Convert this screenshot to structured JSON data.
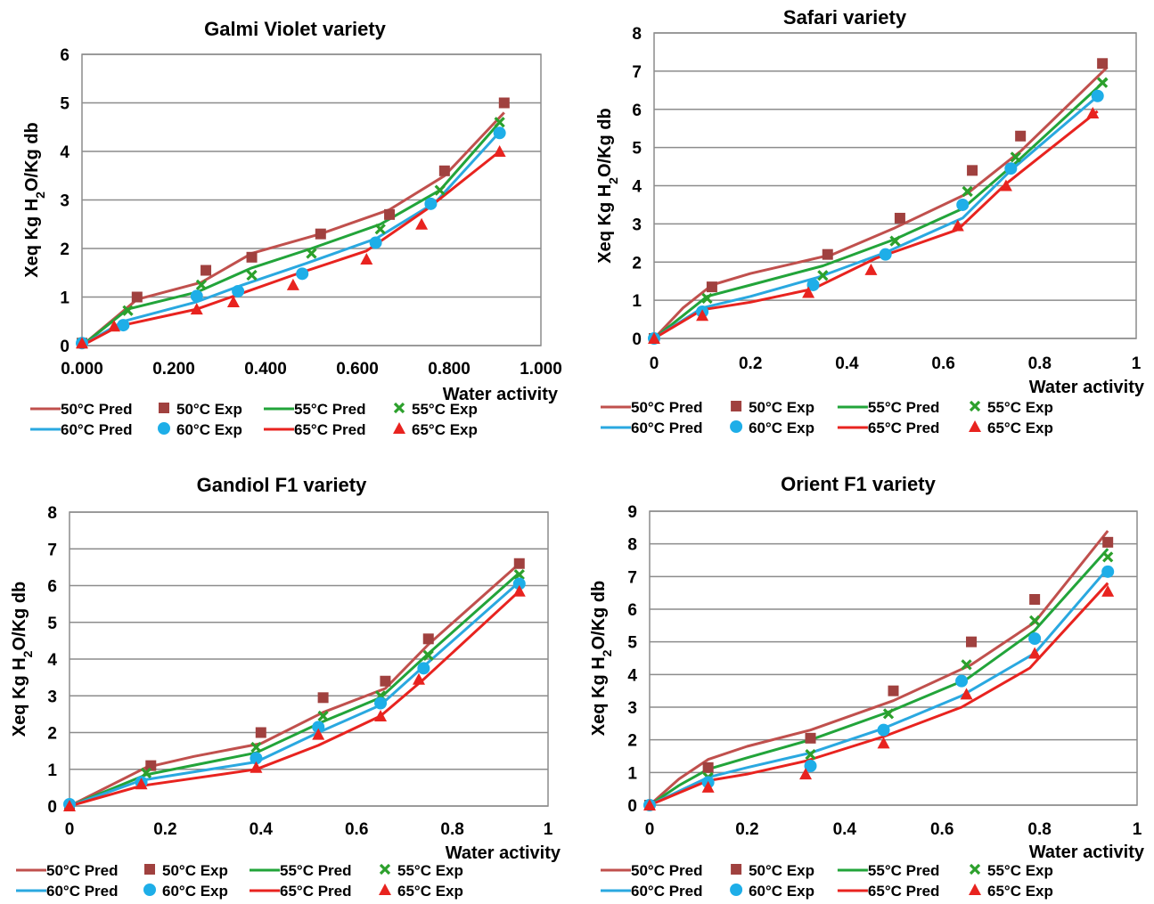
{
  "chart_data": [
    {
      "type": "line",
      "title": "Galmi Violet variety",
      "xlabel": "Water activity",
      "ylabel": "Xeq Kg H2O/Kg db",
      "xlim": [
        0,
        1
      ],
      "ylim": [
        0,
        6
      ],
      "xticks": [
        0,
        0.2,
        0.4,
        0.6,
        0.8,
        1.0
      ],
      "xtick_labels": [
        "0.000",
        "0.200",
        "0.400",
        "0.600",
        "0.800",
        "1.000"
      ],
      "yticks": [
        0,
        1,
        2,
        3,
        4,
        5,
        6
      ],
      "ytick_labels": [
        "0",
        "1",
        "2",
        "3",
        "4",
        "5",
        "6"
      ],
      "grid": "horizontal",
      "legend_position": "bottom",
      "series": [
        {
          "name": "50°C Pred",
          "kind": "line",
          "color": "#c0504d",
          "x": [
            0,
            0.12,
            0.26,
            0.37,
            0.52,
            0.67,
            0.79,
            0.92
          ],
          "y": [
            0,
            0.95,
            1.3,
            1.9,
            2.3,
            2.8,
            3.5,
            4.8
          ]
        },
        {
          "name": "50°C Exp",
          "kind": "marker",
          "marker": "square",
          "color": "#a0413f",
          "x": [
            0,
            0.12,
            0.27,
            0.37,
            0.52,
            0.67,
            0.79,
            0.92
          ],
          "y": [
            0.05,
            1.0,
            1.55,
            1.82,
            2.3,
            2.7,
            3.6,
            5.0
          ]
        },
        {
          "name": "55°C Pred",
          "kind": "line",
          "color": "#22a43a",
          "x": [
            0,
            0.1,
            0.25,
            0.37,
            0.5,
            0.65,
            0.78,
            0.91
          ],
          "y": [
            0,
            0.75,
            1.1,
            1.6,
            2.0,
            2.5,
            3.2,
            4.6
          ]
        },
        {
          "name": "55°C Exp",
          "kind": "marker",
          "marker": "x",
          "color": "#2ca02c",
          "x": [
            0,
            0.1,
            0.26,
            0.37,
            0.5,
            0.65,
            0.78,
            0.91
          ],
          "y": [
            0.05,
            0.72,
            1.25,
            1.45,
            1.9,
            2.4,
            3.2,
            4.6
          ]
        },
        {
          "name": "60°C Pred",
          "kind": "line",
          "color": "#2aa8e0",
          "x": [
            0,
            0.09,
            0.25,
            0.35,
            0.49,
            0.64,
            0.77,
            0.91
          ],
          "y": [
            0,
            0.5,
            0.9,
            1.25,
            1.7,
            2.2,
            2.95,
            4.4
          ]
        },
        {
          "name": "60°C Exp",
          "kind": "marker",
          "marker": "circle",
          "color": "#1eaee8",
          "x": [
            0,
            0.09,
            0.25,
            0.34,
            0.48,
            0.64,
            0.76,
            0.91
          ],
          "y": [
            0.05,
            0.42,
            1.02,
            1.12,
            1.48,
            2.12,
            2.92,
            4.38
          ]
        },
        {
          "name": "65°C Pred",
          "kind": "line",
          "color": "#e8231f",
          "x": [
            0,
            0.08,
            0.25,
            0.34,
            0.46,
            0.62,
            0.75,
            0.91
          ],
          "y": [
            0,
            0.4,
            0.75,
            1.05,
            1.45,
            1.95,
            2.8,
            4.0
          ]
        },
        {
          "name": "65°C Exp",
          "kind": "marker",
          "marker": "triangle",
          "color": "#e8231f",
          "x": [
            0,
            0.07,
            0.25,
            0.33,
            0.46,
            0.62,
            0.74,
            0.91
          ],
          "y": [
            0.05,
            0.4,
            0.75,
            0.9,
            1.25,
            1.78,
            2.5,
            4.0
          ]
        }
      ]
    },
    {
      "type": "line",
      "title": "Safari variety",
      "xlabel": "Water activity",
      "ylabel": "Xeq Kg H2O/Kg db",
      "xlim": [
        0,
        1
      ],
      "ylim": [
        0,
        8
      ],
      "xticks": [
        0,
        0.2,
        0.4,
        0.6,
        0.8,
        1
      ],
      "xtick_labels": [
        "0",
        "0.2",
        "0.4",
        "0.6",
        "0.8",
        "1"
      ],
      "yticks": [
        0,
        1,
        2,
        3,
        4,
        5,
        6,
        7,
        8
      ],
      "ytick_labels": [
        "0",
        "1",
        "2",
        "3",
        "4",
        "5",
        "6",
        "7",
        "8"
      ],
      "grid": "horizontal",
      "legend_position": "bottom",
      "series": [
        {
          "name": "50°C Pred",
          "kind": "line",
          "color": "#c0504d",
          "x": [
            0,
            0.06,
            0.12,
            0.2,
            0.37,
            0.5,
            0.65,
            0.76,
            0.94
          ],
          "y": [
            0,
            0.8,
            1.4,
            1.7,
            2.2,
            2.9,
            3.8,
            4.9,
            7.1
          ]
        },
        {
          "name": "50°C Exp",
          "kind": "marker",
          "marker": "square",
          "color": "#a0413f",
          "x": [
            0,
            0.12,
            0.36,
            0.51,
            0.66,
            0.76,
            0.93
          ],
          "y": [
            0,
            1.35,
            2.2,
            3.15,
            4.4,
            5.3,
            7.2
          ]
        },
        {
          "name": "55°C Pred",
          "kind": "line",
          "color": "#22a43a",
          "x": [
            0,
            0.06,
            0.11,
            0.2,
            0.35,
            0.5,
            0.64,
            0.75,
            0.94
          ],
          "y": [
            0,
            0.6,
            1.1,
            1.4,
            1.9,
            2.6,
            3.4,
            4.6,
            6.8
          ]
        },
        {
          "name": "55°C Exp",
          "kind": "marker",
          "marker": "x",
          "color": "#2ca02c",
          "x": [
            0,
            0.11,
            0.35,
            0.5,
            0.65,
            0.75,
            0.93
          ],
          "y": [
            0,
            1.05,
            1.65,
            2.55,
            3.85,
            4.75,
            6.7
          ]
        },
        {
          "name": "60°C Pred",
          "kind": "line",
          "color": "#2aa8e0",
          "x": [
            0,
            0.1,
            0.2,
            0.34,
            0.48,
            0.64,
            0.74,
            0.93
          ],
          "y": [
            0,
            0.8,
            1.1,
            1.6,
            2.25,
            3.15,
            4.4,
            6.45
          ]
        },
        {
          "name": "60°C Exp",
          "kind": "marker",
          "marker": "circle",
          "color": "#1eaee8",
          "x": [
            0,
            0.1,
            0.33,
            0.48,
            0.64,
            0.74,
            0.92
          ],
          "y": [
            0,
            0.7,
            1.4,
            2.2,
            3.5,
            4.45,
            6.35
          ]
        },
        {
          "name": "65°C Pred",
          "kind": "line",
          "color": "#e8231f",
          "x": [
            0,
            0.1,
            0.2,
            0.33,
            0.46,
            0.63,
            0.73,
            0.92
          ],
          "y": [
            0,
            0.75,
            0.95,
            1.3,
            2.1,
            2.85,
            4.05,
            5.95
          ]
        },
        {
          "name": "65°C Exp",
          "kind": "marker",
          "marker": "triangle",
          "color": "#e8231f",
          "x": [
            0,
            0.1,
            0.32,
            0.45,
            0.63,
            0.73,
            0.91
          ],
          "y": [
            0,
            0.6,
            1.2,
            1.8,
            2.95,
            4.0,
            5.9
          ]
        }
      ]
    },
    {
      "type": "line",
      "title": "Gandiol F1 variety",
      "xlabel": "Water activity",
      "ylabel": "Xeq Kg H2O/Kg db",
      "xlim": [
        0,
        1
      ],
      "ylim": [
        0,
        8
      ],
      "xticks": [
        0,
        0.2,
        0.4,
        0.6,
        0.8,
        1
      ],
      "xtick_labels": [
        "0",
        "0.2",
        "0.4",
        "0.6",
        "0.8",
        "1"
      ],
      "yticks": [
        0,
        1,
        2,
        3,
        4,
        5,
        6,
        7,
        8
      ],
      "ytick_labels": [
        "0",
        "1",
        "2",
        "3",
        "4",
        "5",
        "6",
        "7",
        "8"
      ],
      "grid": "horizontal",
      "legend_position": "bottom",
      "series": [
        {
          "name": "50°C Pred",
          "kind": "line",
          "color": "#c0504d",
          "x": [
            0,
            0.16,
            0.26,
            0.4,
            0.53,
            0.66,
            0.75,
            0.94
          ],
          "y": [
            0,
            1.05,
            1.35,
            1.7,
            2.55,
            3.2,
            4.4,
            6.6
          ]
        },
        {
          "name": "50°C Exp",
          "kind": "marker",
          "marker": "square",
          "color": "#a0413f",
          "x": [
            0,
            0.17,
            0.4,
            0.53,
            0.66,
            0.75,
            0.94
          ],
          "y": [
            0,
            1.1,
            2.0,
            2.95,
            3.4,
            4.55,
            6.6
          ]
        },
        {
          "name": "55°C Pred",
          "kind": "line",
          "color": "#22a43a",
          "x": [
            0,
            0.16,
            0.39,
            0.53,
            0.65,
            0.75,
            0.94
          ],
          "y": [
            0,
            0.85,
            1.45,
            2.3,
            2.95,
            4.15,
            6.35
          ]
        },
        {
          "name": "55°C Exp",
          "kind": "marker",
          "marker": "x",
          "color": "#2ca02c",
          "x": [
            0,
            0.16,
            0.39,
            0.53,
            0.65,
            0.75,
            0.94
          ],
          "y": [
            0,
            0.9,
            1.6,
            2.45,
            3.0,
            4.1,
            6.3
          ]
        },
        {
          "name": "60°C Pred",
          "kind": "line",
          "color": "#2aa8e0",
          "x": [
            0,
            0.15,
            0.39,
            0.52,
            0.65,
            0.74,
            0.94
          ],
          "y": [
            0,
            0.7,
            1.2,
            2.0,
            2.75,
            3.8,
            6.1
          ]
        },
        {
          "name": "60°C Exp",
          "kind": "marker",
          "marker": "circle",
          "color": "#1eaee8",
          "x": [
            0,
            0.15,
            0.39,
            0.52,
            0.65,
            0.74,
            0.94
          ],
          "y": [
            0.05,
            0.65,
            1.3,
            2.15,
            2.8,
            3.75,
            6.05
          ]
        },
        {
          "name": "65°C Pred",
          "kind": "line",
          "color": "#e8231f",
          "x": [
            0,
            0.15,
            0.39,
            0.52,
            0.65,
            0.74,
            0.94
          ],
          "y": [
            0,
            0.55,
            1.0,
            1.65,
            2.45,
            3.45,
            5.85
          ]
        },
        {
          "name": "65°C Exp",
          "kind": "marker",
          "marker": "triangle",
          "color": "#e8231f",
          "x": [
            0,
            0.15,
            0.39,
            0.52,
            0.65,
            0.73,
            0.94
          ],
          "y": [
            0,
            0.6,
            1.05,
            1.95,
            2.45,
            3.45,
            5.85
          ]
        }
      ]
    },
    {
      "type": "line",
      "title": "Orient F1 variety",
      "xlabel": "Water activity",
      "ylabel": "Xeq Kg H2O/Kg db",
      "xlim": [
        0,
        1
      ],
      "ylim": [
        0,
        9
      ],
      "xticks": [
        0,
        0.2,
        0.4,
        0.6,
        0.8,
        1
      ],
      "xtick_labels": [
        "0",
        "0.2",
        "0.4",
        "0.6",
        "0.8",
        "1"
      ],
      "yticks": [
        0,
        1,
        2,
        3,
        4,
        5,
        6,
        7,
        8,
        9
      ],
      "ytick_labels": [
        "0",
        "1",
        "2",
        "3",
        "4",
        "5",
        "6",
        "7",
        "8",
        "9"
      ],
      "grid": "horizontal",
      "legend_position": "bottom",
      "series": [
        {
          "name": "50°C Pred",
          "kind": "line",
          "color": "#c0504d",
          "x": [
            0,
            0.06,
            0.12,
            0.2,
            0.33,
            0.5,
            0.66,
            0.79,
            0.94
          ],
          "y": [
            0,
            0.8,
            1.4,
            1.8,
            2.3,
            3.2,
            4.3,
            5.6,
            8.4
          ]
        },
        {
          "name": "50°C Exp",
          "kind": "marker",
          "marker": "square",
          "color": "#a0413f",
          "x": [
            0,
            0.12,
            0.33,
            0.5,
            0.66,
            0.79,
            0.94
          ],
          "y": [
            0,
            1.15,
            2.05,
            3.5,
            5.0,
            6.3,
            8.05
          ]
        },
        {
          "name": "55°C Pred",
          "kind": "line",
          "color": "#22a43a",
          "x": [
            0,
            0.06,
            0.12,
            0.2,
            0.33,
            0.49,
            0.65,
            0.79,
            0.94
          ],
          "y": [
            0,
            0.6,
            1.1,
            1.45,
            2.0,
            2.85,
            3.85,
            5.35,
            7.85
          ]
        },
        {
          "name": "55°C Exp",
          "kind": "marker",
          "marker": "x",
          "color": "#2ca02c",
          "x": [
            0,
            0.12,
            0.33,
            0.49,
            0.65,
            0.79,
            0.94
          ],
          "y": [
            0,
            0.85,
            1.55,
            2.8,
            4.3,
            5.65,
            7.6
          ]
        },
        {
          "name": "60°C Pred",
          "kind": "line",
          "color": "#2aa8e0",
          "x": [
            0,
            0.12,
            0.2,
            0.33,
            0.48,
            0.64,
            0.79,
            0.94
          ],
          "y": [
            0,
            0.85,
            1.15,
            1.6,
            2.35,
            3.35,
            4.65,
            7.25
          ]
        },
        {
          "name": "60°C Exp",
          "kind": "marker",
          "marker": "circle",
          "color": "#1eaee8",
          "x": [
            0,
            0.12,
            0.33,
            0.48,
            0.64,
            0.79,
            0.94
          ],
          "y": [
            0,
            0.7,
            1.2,
            2.3,
            3.8,
            5.1,
            7.15
          ]
        },
        {
          "name": "65°C Pred",
          "kind": "line",
          "color": "#e8231f",
          "x": [
            0,
            0.12,
            0.2,
            0.32,
            0.48,
            0.64,
            0.78,
            0.94
          ],
          "y": [
            0,
            0.75,
            0.95,
            1.35,
            2.1,
            3.0,
            4.2,
            6.8
          ]
        },
        {
          "name": "65°C Exp",
          "kind": "marker",
          "marker": "triangle",
          "color": "#e8231f",
          "x": [
            0,
            0.12,
            0.32,
            0.48,
            0.65,
            0.79,
            0.94
          ],
          "y": [
            0,
            0.55,
            0.95,
            1.9,
            3.4,
            4.65,
            6.55
          ]
        }
      ]
    }
  ]
}
